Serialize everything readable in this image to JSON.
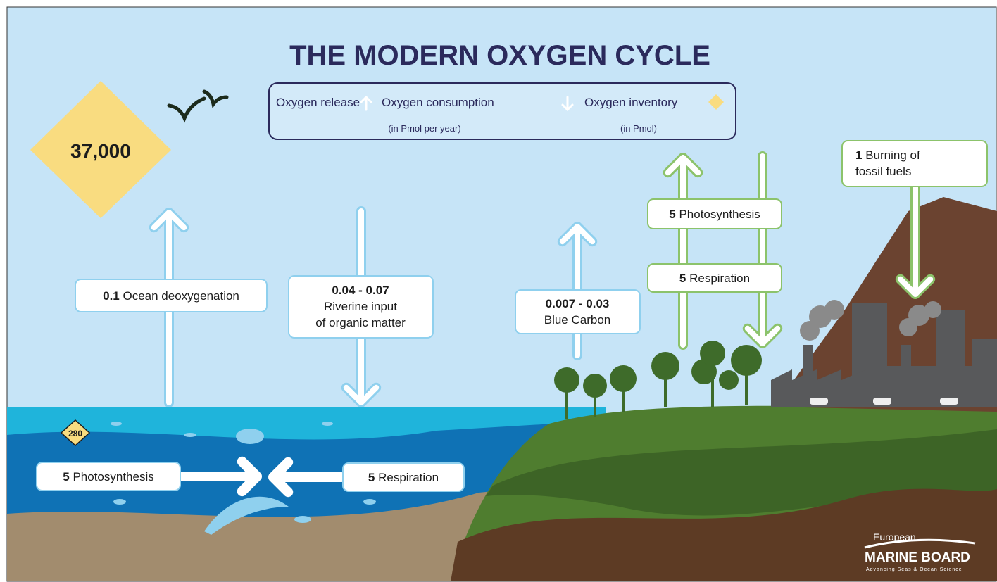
{
  "title": "THE MODERN OXYGEN CYCLE",
  "legend": {
    "release": "Oxygen release",
    "consumption": "Oxygen consumption",
    "inventory": "Oxygen inventory",
    "flux_unit": "(in Pmol per year)",
    "inventory_unit": "(in Pmol)"
  },
  "atmosphere_inventory": "37,000",
  "ocean_inventory": "280",
  "flows": [
    {
      "value": "0.1",
      "label": [
        "Ocean deoxygenation"
      ]
    },
    {
      "value": "0.04 - 0.07",
      "label": [
        "Riverine input",
        "of organic matter"
      ]
    },
    {
      "value": "0.007 - 0.03",
      "label": [
        "Blue Carbon"
      ]
    },
    {
      "value": "5",
      "label": [
        "Photosynthesis"
      ]
    },
    {
      "value": "5",
      "label": [
        "Respiration"
      ]
    },
    {
      "value": "1",
      "label": [
        "Burning of",
        "fossil fuels"
      ]
    },
    {
      "value": "5",
      "label": [
        "Photosynthesis"
      ]
    },
    {
      "value": "5",
      "label": [
        "Respiration"
      ]
    }
  ],
  "logo": {
    "line1": "European",
    "line2": "MARINE BOARD",
    "tagline": "Advancing Seas & Ocean Science"
  }
}
